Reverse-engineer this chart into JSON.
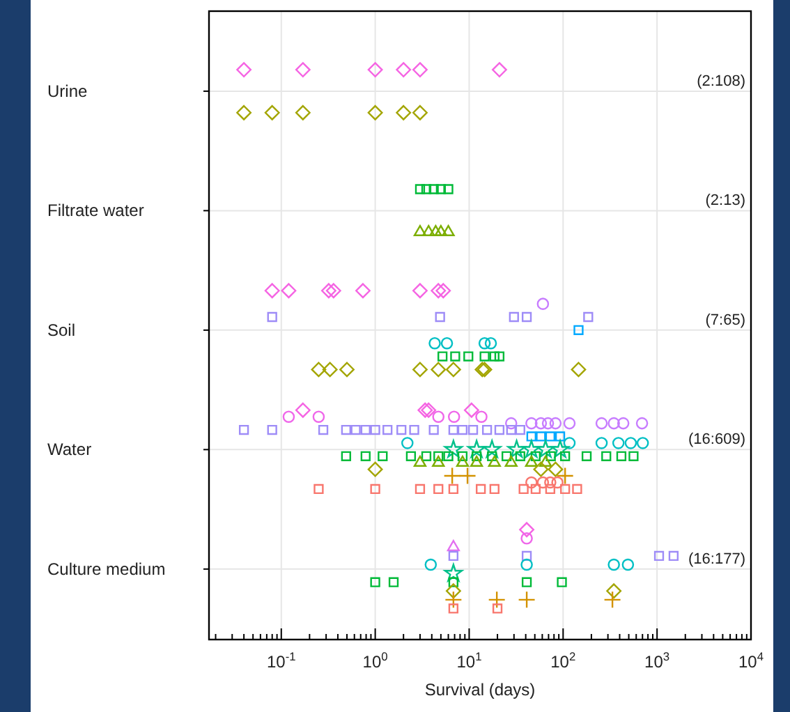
{
  "chart_data": {
    "type": "scatter",
    "orientation": "horizontal",
    "xlabel": "Survival (days)",
    "log": "x",
    "grid": true,
    "categories": [
      "Urine",
      "Filtrate water",
      "Soil",
      "Water",
      "Culture medium"
    ],
    "xlim": [
      0.017,
      10000
    ],
    "xticks": [
      {
        "value": 0.02,
        "label": null
      },
      {
        "value": 0.03,
        "label": null
      },
      {
        "value": 0.04,
        "label": null
      },
      {
        "value": 0.05,
        "label": null
      },
      {
        "value": 0.06,
        "label": null
      },
      {
        "value": 0.07,
        "label": null
      },
      {
        "value": 0.08,
        "label": null
      },
      {
        "value": 0.09,
        "label": null
      },
      {
        "value": 0.1,
        "label": "10$^{-1}$"
      },
      {
        "value": 0.2,
        "label": null
      },
      {
        "value": 0.3,
        "label": null
      },
      {
        "value": 0.4,
        "label": null
      },
      {
        "value": 0.5,
        "label": null
      },
      {
        "value": 0.6,
        "label": null
      },
      {
        "value": 0.7,
        "label": null
      },
      {
        "value": 0.8,
        "label": null
      },
      {
        "value": 0.9,
        "label": null
      },
      {
        "value": 1,
        "label": "10$^{0}$"
      },
      {
        "value": 2,
        "label": null
      },
      {
        "value": 3,
        "label": null
      },
      {
        "value": 4,
        "label": null
      },
      {
        "value": 5,
        "label": null
      },
      {
        "value": 6,
        "label": null
      },
      {
        "value": 7,
        "label": null
      },
      {
        "value": 8,
        "label": null
      },
      {
        "value": 9,
        "label": null
      },
      {
        "value": 10,
        "label": "10$^{1}$"
      },
      {
        "value": 20,
        "label": null
      },
      {
        "value": 30,
        "label": null
      },
      {
        "value": 40,
        "label": null
      },
      {
        "value": 50,
        "label": null
      },
      {
        "value": 60,
        "label": null
      },
      {
        "value": 70,
        "label": null
      },
      {
        "value": 80,
        "label": null
      },
      {
        "value": 90,
        "label": null
      },
      {
        "value": 100,
        "label": "10$^{2}$"
      },
      {
        "value": 200,
        "label": null
      },
      {
        "value": 300,
        "label": null
      },
      {
        "value": 400,
        "label": null
      },
      {
        "value": 500,
        "label": null
      },
      {
        "value": 600,
        "label": null
      },
      {
        "value": 700,
        "label": null
      },
      {
        "value": 800,
        "label": null
      },
      {
        "value": 900,
        "label": null
      },
      {
        "value": 1000,
        "label": "10$^{3}$"
      },
      {
        "value": 2000,
        "label": null
      },
      {
        "value": 3000,
        "label": null
      },
      {
        "value": 4000,
        "label": null
      },
      {
        "value": 5000,
        "label": null
      },
      {
        "value": 6000,
        "label": null
      },
      {
        "value": 7000,
        "label": null
      },
      {
        "value": 8000,
        "label": null
      },
      {
        "value": 9000,
        "label": null
      },
      {
        "value": 10000,
        "label": "10$^{4}$"
      }
    ],
    "annotations": [
      "(2:108)",
      "(2:13)",
      "(7:65)",
      "(16:609)",
      "(16:177)"
    ],
    "series": [
      {
        "color": "#f564e3",
        "marker": "diamond",
        "x": [
          "Urine",
          "Urine",
          "Urine",
          "Urine",
          "Urine",
          "Urine",
          "Soil",
          "Soil",
          "Soil",
          "Soil",
          "Soil",
          "Soil",
          "Soil",
          "Soil",
          "Water",
          "Water",
          "Water",
          "Water",
          "Culture medium"
        ],
        "values": [
          0.04,
          0.17,
          1,
          2,
          3,
          21,
          0.08,
          0.12,
          0.32,
          0.36,
          0.74,
          3,
          4.7,
          5.3,
          0.17,
          3.4,
          3.7,
          10.6,
          41
        ]
      },
      {
        "color": "#ef67ea",
        "marker": "circle",
        "x": [
          "Water",
          "Water",
          "Water",
          "Water",
          "Water",
          "Culture medium"
        ],
        "values": [
          0.12,
          0.25,
          4.7,
          6.9,
          13.5,
          41
        ]
      },
      {
        "color": "#e36ff0",
        "marker": "triangle",
        "x": [
          "Culture medium"
        ],
        "values": [
          6.8
        ]
      },
      {
        "color": "#c77cff",
        "marker": "circle",
        "x": [
          "Soil",
          "Water",
          "Water",
          "Water",
          "Water",
          "Water",
          "Water",
          "Water",
          "Water",
          "Water",
          "Water"
        ],
        "values": [
          61,
          28,
          46,
          58,
          69,
          83,
          117,
          257,
          347,
          437,
          692
        ]
      },
      {
        "color": "#9e8cf7",
        "marker": "square",
        "x": [
          "Soil",
          "Soil",
          "Soil",
          "Soil",
          "Soil",
          "Water",
          "Water",
          "Water",
          "Water",
          "Water",
          "Water",
          "Water",
          "Water",
          "Water",
          "Water",
          "Water",
          "Water",
          "Water",
          "Water",
          "Water",
          "Water",
          "Water",
          "Water",
          "Culture medium",
          "Culture medium",
          "Culture medium",
          "Culture medium"
        ],
        "values": [
          0.08,
          4.9,
          30,
          41,
          185,
          0.04,
          0.08,
          0.28,
          0.49,
          0.62,
          0.79,
          1,
          1.35,
          1.9,
          2.6,
          4.2,
          6.8,
          8.5,
          11,
          15.5,
          21,
          28,
          35,
          6.8,
          41,
          1050,
          1500
        ]
      },
      {
        "color": "#00a9ff",
        "marker": "square",
        "x": [
          "Soil",
          "Water",
          "Water",
          "Water",
          "Water"
        ],
        "values": [
          146,
          46,
          58,
          73,
          93
        ]
      },
      {
        "color": "#00bfc4",
        "marker": "circle",
        "x": [
          "Soil",
          "Soil",
          "Soil",
          "Soil",
          "Water",
          "Water",
          "Water",
          "Water",
          "Water",
          "Water",
          "Culture medium",
          "Culture medium",
          "Culture medium",
          "Culture medium"
        ],
        "values": [
          4.3,
          5.8,
          14.6,
          17,
          2.2,
          117,
          257,
          388,
          525,
          705,
          3.9,
          41,
          347,
          490
        ]
      },
      {
        "color": "#00c08b",
        "marker": "star",
        "x": [
          "Water",
          "Water",
          "Water",
          "Water",
          "Water",
          "Water",
          "Water",
          "Culture medium"
        ],
        "values": [
          6.8,
          12,
          17.5,
          32,
          46,
          65,
          93,
          6.8
        ]
      },
      {
        "color": "#00ba38",
        "marker": "square",
        "x": [
          "Filtrate water",
          "Filtrate water",
          "Filtrate water",
          "Filtrate water",
          "Filtrate water",
          "Soil",
          "Soil",
          "Soil",
          "Soil",
          "Soil",
          "Soil",
          "Water",
          "Water",
          "Water",
          "Water",
          "Water",
          "Water",
          "Water",
          "Water",
          "Water",
          "Water",
          "Water",
          "Water",
          "Water",
          "Water",
          "Water",
          "Water",
          "Water",
          "Water",
          "Water",
          "Culture medium",
          "Culture medium",
          "Culture medium",
          "Culture medium",
          "Culture medium"
        ],
        "values": [
          3,
          3.5,
          4.2,
          5,
          6,
          5.2,
          7.1,
          9.8,
          14.6,
          18.6,
          21,
          0.49,
          0.79,
          1.2,
          2.4,
          3.5,
          4.7,
          6,
          8.5,
          12,
          17.5,
          25,
          35,
          51,
          74,
          105,
          178,
          288,
          417,
          562,
          1,
          1.57,
          6.8,
          41,
          97
        ]
      },
      {
        "color": "#7cae00",
        "marker": "triangle",
        "x": [
          "Filtrate water",
          "Filtrate water",
          "Filtrate water",
          "Filtrate water",
          "Filtrate water",
          "Water",
          "Water",
          "Water",
          "Water",
          "Water",
          "Water",
          "Water",
          "Water"
        ],
        "values": [
          3,
          3.7,
          4.4,
          5,
          6,
          3,
          4.7,
          8.5,
          12,
          18.6,
          28,
          46,
          65
        ]
      },
      {
        "color": "#a3a500",
        "marker": "diamond",
        "x": [
          "Urine",
          "Urine",
          "Urine",
          "Urine",
          "Urine",
          "Urine",
          "Soil",
          "Soil",
          "Soil",
          "Soil",
          "Soil",
          "Soil",
          "Soil",
          "Soil",
          "Soil",
          "Water",
          "Water",
          "Water",
          "Culture medium",
          "Culture medium"
        ],
        "values": [
          0.04,
          0.08,
          0.17,
          1,
          2,
          3,
          0.25,
          0.33,
          0.5,
          3,
          4.7,
          6.8,
          13.8,
          14.6,
          146,
          1,
          58,
          83,
          6.8,
          347
        ]
      },
      {
        "color": "#d39200",
        "marker": "cross",
        "x": [
          "Water",
          "Water",
          "Water",
          "Culture medium",
          "Culture medium",
          "Culture medium",
          "Culture medium"
        ],
        "values": [
          6.6,
          9.6,
          105,
          6.8,
          19.7,
          41,
          335
        ]
      },
      {
        "color": "#f8766d",
        "marker": "circle",
        "x": [
          "Water",
          "Water",
          "Water",
          "Water"
        ],
        "values": [
          46,
          61,
          73,
          87
        ]
      },
      {
        "color": "#f8766d",
        "marker": "square",
        "x": [
          "Water",
          "Water",
          "Water",
          "Water",
          "Water",
          "Water",
          "Water",
          "Water",
          "Water",
          "Water",
          "Water",
          "Water",
          "Culture medium",
          "Culture medium"
        ],
        "values": [
          0.25,
          1,
          3,
          4.7,
          6.8,
          13.3,
          18.6,
          38,
          51,
          73,
          105,
          141,
          6.8,
          20
        ]
      }
    ]
  }
}
